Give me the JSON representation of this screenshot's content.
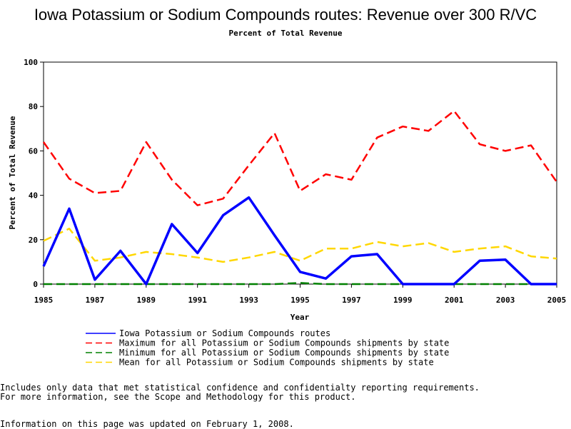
{
  "page": {
    "title": "Iowa Potassium or Sodium Compounds routes: Revenue over 300 R/VC",
    "subtitle": "Percent of Total Revenue",
    "note_line1": "Includes only data that met statistical confidence and confidentialty reporting requirements.",
    "note_line2": "For more information, see the Scope and Methodology for this product.",
    "updated": "Information on this page was updated on February 1, 2008."
  },
  "chart_data": {
    "type": "line",
    "title": "Iowa Potassium or Sodium Compounds routes: Revenue over 300 R/VC",
    "subtitle": "Percent of Total Revenue",
    "xlabel": "Year",
    "ylabel": "Percent of Total Revenue",
    "xlim": [
      1985,
      2005
    ],
    "ylim": [
      0,
      100
    ],
    "x_ticks": [
      1985,
      1987,
      1989,
      1991,
      1993,
      1995,
      1997,
      1999,
      2001,
      2003,
      2005
    ],
    "y_ticks": [
      0,
      20,
      40,
      60,
      80,
      100
    ],
    "legend_position": "bottom",
    "x": [
      1985,
      1986,
      1987,
      1988,
      1989,
      1990,
      1991,
      1992,
      1993,
      1994,
      1995,
      1996,
      1997,
      1998,
      1999,
      2000,
      2001,
      2002,
      2003,
      2004,
      2005
    ],
    "series": [
      {
        "name": "Iowa Potassium or Sodium Compounds routes",
        "color": "#0000ff",
        "style": "solid",
        "values": [
          8,
          34,
          2,
          15,
          0,
          27,
          14,
          31,
          39,
          22,
          5.5,
          2.5,
          12.5,
          13.5,
          0,
          0,
          0,
          10.5,
          11,
          0,
          0
        ]
      },
      {
        "name": "Maximum for all Potassium or Sodium Compounds shipments by state",
        "color": "#ff0000",
        "style": "dashed",
        "values": [
          64,
          47.5,
          41,
          42,
          64,
          47,
          35.5,
          38.5,
          53.5,
          68,
          42,
          49.5,
          47,
          66,
          71,
          69,
          78,
          63,
          60,
          62.5,
          46
        ]
      },
      {
        "name": "Minimum for all Potassium or Sodium Compounds shipments by state",
        "color": "#008000",
        "style": "dashed",
        "values": [
          0,
          0,
          0,
          0,
          0,
          0,
          0,
          0,
          0,
          0,
          0.5,
          0,
          0,
          0,
          0,
          0,
          0,
          0,
          0,
          0,
          0
        ]
      },
      {
        "name": "Mean for all Potassium or Sodium Compounds shipments by state",
        "color": "#ffd700",
        "style": "dashed",
        "values": [
          19.5,
          25,
          10.5,
          12,
          14.5,
          13.5,
          12,
          10,
          12,
          14.5,
          10.5,
          16,
          16,
          19,
          17,
          18.5,
          14.5,
          16,
          17,
          12.5,
          11.5
        ]
      }
    ]
  }
}
